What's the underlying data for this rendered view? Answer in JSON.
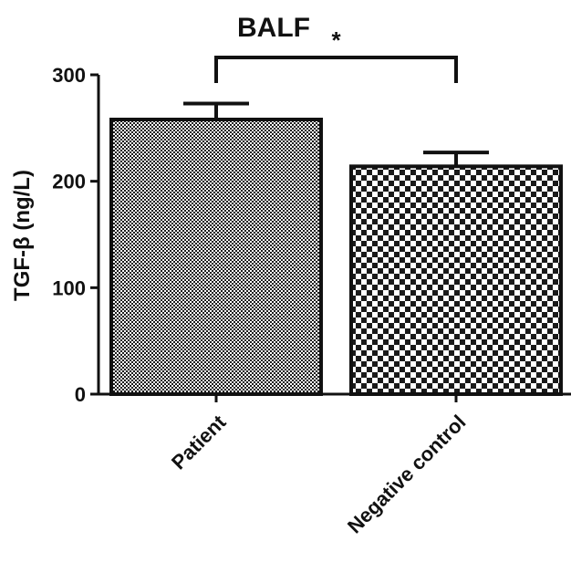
{
  "chart_data": {
    "type": "bar",
    "title": "BALF",
    "ylabel": "TGF-β (ng/L)",
    "xlabel": "",
    "categories": [
      "Patient",
      "Negative control"
    ],
    "values": [
      258,
      214
    ],
    "errors": [
      15,
      13
    ],
    "ylim": [
      0,
      300
    ],
    "yticks": [
      "0",
      "100",
      "200",
      "300"
    ],
    "grid": false,
    "legend": "none",
    "significance": {
      "between": [
        0,
        1
      ],
      "label": "*"
    },
    "colors": {
      "axis": "#111111",
      "pattern_dark": "#1a1a1a",
      "pattern_light": "#ffffff"
    }
  }
}
